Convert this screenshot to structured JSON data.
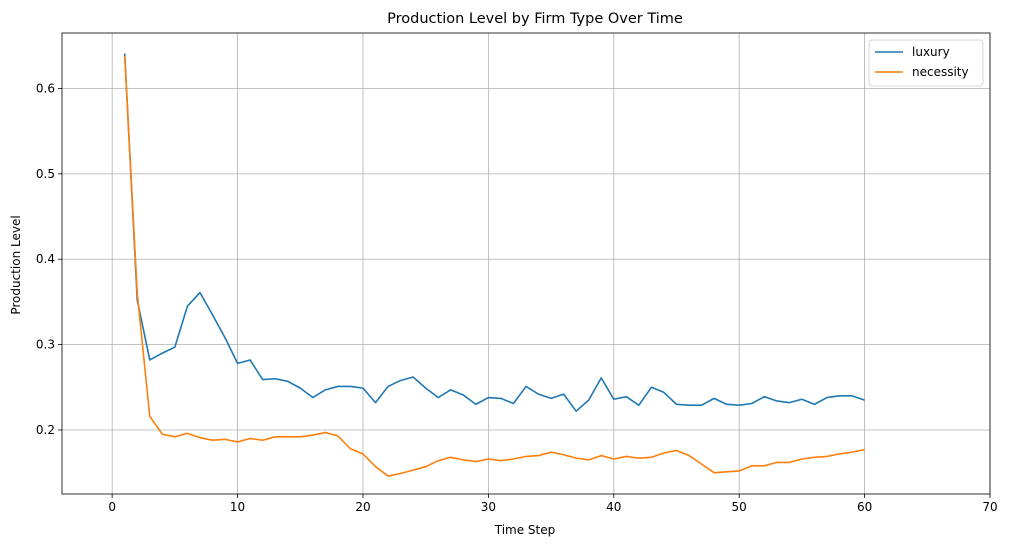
{
  "chart_data": {
    "type": "line",
    "title": "Production Level by Firm Type Over Time",
    "xlabel": "Time Step",
    "ylabel": "Production Level",
    "xlim": [
      -4,
      70
    ],
    "ylim": [
      0.125,
      0.665
    ],
    "xticks": [
      0,
      10,
      20,
      30,
      40,
      50,
      60,
      70
    ],
    "yticks": [
      0.2,
      0.3,
      0.4,
      0.5,
      0.6
    ],
    "ytick_labels": [
      "0.2",
      "0.3",
      "0.4",
      "0.5",
      "0.6"
    ],
    "grid": true,
    "legend_position": "top-right",
    "x": [
      1,
      2,
      3,
      4,
      5,
      6,
      7,
      8,
      9,
      10,
      11,
      12,
      13,
      14,
      15,
      16,
      17,
      18,
      19,
      20,
      21,
      22,
      23,
      24,
      25,
      26,
      27,
      28,
      29,
      30,
      31,
      32,
      33,
      34,
      35,
      36,
      37,
      38,
      39,
      40,
      41,
      42,
      43,
      44,
      45,
      46,
      47,
      48,
      49,
      50,
      51,
      52,
      53,
      54,
      55,
      56,
      57,
      58,
      59,
      60
    ],
    "series": [
      {
        "name": "luxury",
        "color": "#1f77b4",
        "values": [
          0.641,
          0.352,
          0.282,
          0.29,
          0.297,
          0.345,
          0.361,
          0.335,
          0.308,
          0.278,
          0.282,
          0.259,
          0.26,
          0.257,
          0.249,
          0.238,
          0.247,
          0.251,
          0.251,
          0.249,
          0.232,
          0.251,
          0.258,
          0.262,
          0.249,
          0.238,
          0.247,
          0.241,
          0.23,
          0.238,
          0.237,
          0.231,
          0.251,
          0.242,
          0.237,
          0.242,
          0.222,
          0.235,
          0.261,
          0.236,
          0.239,
          0.229,
          0.25,
          0.244,
          0.23,
          0.229,
          0.229,
          0.237,
          0.23,
          0.229,
          0.231,
          0.239,
          0.234,
          0.232,
          0.236,
          0.23,
          0.238,
          0.24,
          0.24,
          0.235
        ]
      },
      {
        "name": "necessity",
        "color": "#ff7f0e",
        "values": [
          0.638,
          0.36,
          0.216,
          0.195,
          0.192,
          0.196,
          0.191,
          0.188,
          0.189,
          0.186,
          0.19,
          0.188,
          0.192,
          0.192,
          0.192,
          0.194,
          0.197,
          0.193,
          0.178,
          0.172,
          0.157,
          0.146,
          0.149,
          0.153,
          0.157,
          0.164,
          0.168,
          0.165,
          0.163,
          0.166,
          0.164,
          0.166,
          0.169,
          0.17,
          0.174,
          0.171,
          0.167,
          0.165,
          0.17,
          0.166,
          0.169,
          0.167,
          0.168,
          0.173,
          0.176,
          0.17,
          0.16,
          0.15,
          0.151,
          0.152,
          0.158,
          0.158,
          0.162,
          0.162,
          0.166,
          0.168,
          0.169,
          0.172,
          0.174,
          0.177
        ]
      }
    ]
  }
}
